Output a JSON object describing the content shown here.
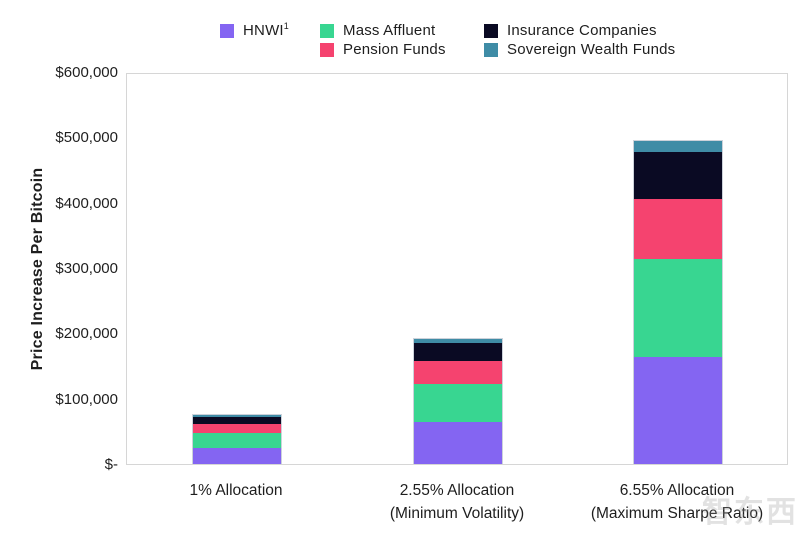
{
  "legend": {
    "items": [
      {
        "label": "HNWI",
        "sup": "1",
        "color": "#8465F2"
      },
      {
        "label": "Mass Affluent",
        "sup": "",
        "color": "#38D691"
      },
      {
        "label": "Pension Funds",
        "sup": "",
        "color": "#F5436F"
      },
      {
        "label": "Insurance Companies",
        "sup": "",
        "color": "#0A0A23"
      },
      {
        "label": "Sovereign Wealth Funds",
        "sup": "",
        "color": "#3F8CA6"
      }
    ]
  },
  "y_axis": {
    "title": "Price Increase Per Bitcoin",
    "ticks": [
      "$600,000",
      "$500,000",
      "$400,000",
      "$300,000",
      "$200,000",
      "$100,000",
      "$-"
    ]
  },
  "x_axis": {
    "categories": [
      {
        "line1": "1% Allocation",
        "line2": ""
      },
      {
        "line1": "2.55% Allocation",
        "line2": "(Minimum Volatility)"
      },
      {
        "line1": "6.55% Allocation",
        "line2": "(Maximum Sharpe Ratio)"
      }
    ]
  },
  "watermark": "智东西",
  "chart_data": {
    "type": "bar",
    "stacked": true,
    "title": "",
    "xlabel": "",
    "ylabel": "Price Increase Per Bitcoin",
    "ylim": [
      0,
      600000
    ],
    "grid": false,
    "legend_position": "top",
    "categories": [
      "1% Allocation",
      "2.55% Allocation (Minimum Volatility)",
      "6.55% Allocation (Maximum Sharpe Ratio)"
    ],
    "series": [
      {
        "name": "HNWI",
        "color": "#8465F2",
        "values": [
          25000,
          64000,
          164000
        ]
      },
      {
        "name": "Mass Affluent",
        "color": "#38D691",
        "values": [
          23000,
          59000,
          151000
        ]
      },
      {
        "name": "Pension Funds",
        "color": "#F5436F",
        "values": [
          14000,
          36000,
          92000
        ]
      },
      {
        "name": "Insurance Companies",
        "color": "#0A0A23",
        "values": [
          11000,
          28000,
          72000
        ]
      },
      {
        "name": "Sovereign Wealth Funds",
        "color": "#3F8CA6",
        "values": [
          2500,
          6400,
          16400
        ]
      }
    ],
    "totals_approx": [
      75500,
      193400,
      495400
    ]
  }
}
